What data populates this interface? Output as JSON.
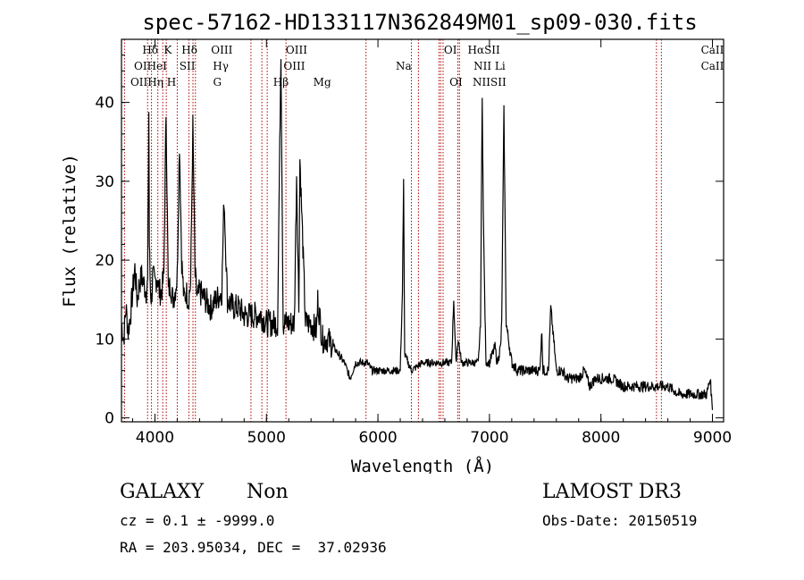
{
  "chart_data": {
    "type": "line",
    "title": "spec-57162-HD133117N362849M01_sp09-030.fits",
    "xlabel": "Wavelength (Å)",
    "ylabel": "Flux (relative)",
    "xlim": [
      3700,
      9100
    ],
    "ylim": [
      -0.5,
      48
    ],
    "x_ticks": [
      4000,
      5000,
      6000,
      7000,
      8000,
      9000
    ],
    "y_ticks": [
      0,
      10,
      20,
      30,
      40
    ],
    "grid": false,
    "line_color": "#000000",
    "marker_color": "#b00000",
    "series": [
      {
        "x": [
          3700,
          3720,
          3740,
          3760,
          3780,
          3800,
          3820,
          3840,
          3860,
          3880,
          3900,
          3920,
          3935,
          3945,
          3950,
          3960,
          3970,
          3980,
          4000,
          4020,
          4040,
          4060,
          4080,
          4100,
          4120,
          4140,
          4160,
          4180,
          4200,
          4220,
          4240,
          4260,
          4280,
          4300,
          4320,
          4340,
          4360,
          4380,
          4400,
          4450,
          4500,
          4550,
          4600,
          4620,
          4650,
          4700,
          4750,
          4800,
          4850,
          4900,
          4950,
          5000,
          5050,
          5100,
          5130,
          5150,
          5200,
          5250,
          5270,
          5290,
          5300,
          5350,
          5400,
          5450,
          5460,
          5500,
          5550,
          5600,
          5650,
          5700,
          5750,
          5800,
          5850,
          5900,
          5950,
          6000,
          6100,
          6200,
          6220,
          6230,
          6240,
          6300,
          6400,
          6500,
          6600,
          6640,
          6660,
          6680,
          6700,
          6720,
          6750,
          6800,
          6850,
          6900,
          6920,
          6935,
          6945,
          6960,
          6970,
          6990,
          7000,
          7050,
          7070,
          7100,
          7110,
          7130,
          7150,
          7200,
          7250,
          7300,
          7350,
          7400,
          7450,
          7470,
          7480,
          7500,
          7530,
          7550,
          7600,
          7650,
          7700,
          7750,
          7800,
          7850,
          7900,
          7950,
          8000,
          8100,
          8200,
          8300,
          8400,
          8500,
          8600,
          8700,
          8800,
          8900,
          8950,
          8980,
          9000
        ],
        "y": [
          12,
          10,
          14,
          11,
          13,
          16,
          19,
          15,
          17,
          18,
          17,
          16,
          17,
          39,
          22,
          16,
          15,
          18,
          17,
          18,
          16,
          16,
          18,
          39,
          16,
          17,
          15,
          16,
          18,
          35,
          20,
          15,
          16,
          15,
          17,
          37,
          18,
          15,
          16,
          15,
          14,
          15,
          16,
          28,
          15,
          14,
          14,
          13,
          13,
          13,
          13,
          12,
          12,
          12,
          47,
          12,
          12,
          12,
          31,
          14,
          33,
          12,
          12,
          11,
          15,
          10,
          10,
          9,
          8,
          7,
          5,
          7,
          7,
          7,
          6,
          6,
          6,
          6,
          16,
          30,
          8,
          6,
          7,
          7,
          7,
          7,
          7,
          15,
          7,
          10,
          7,
          7,
          7,
          7,
          12,
          41,
          26,
          13,
          7,
          7,
          7,
          9,
          7,
          9,
          12,
          39,
          12,
          7,
          6,
          6,
          6,
          6,
          6,
          11,
          6,
          6,
          6,
          14,
          6,
          6,
          5,
          5,
          5,
          6,
          4,
          5,
          5,
          5,
          4,
          4,
          4,
          4,
          4,
          3,
          3,
          3,
          3,
          5,
          1
        ]
      }
    ],
    "lines": [
      {
        "name": "OII",
        "x": 3727
      },
      {
        "name": "CaII",
        "x": 3934
      },
      {
        "name": "CaII",
        "x": 3969
      },
      {
        "name": "Hε",
        "x": 3970
      },
      {
        "name": "HeI",
        "x": 4026
      },
      {
        "name": "Hδ",
        "x": 4102
      },
      {
        "name": "K",
        "x": 4145
      },
      {
        "name": "H",
        "x": 4200
      },
      {
        "name": "SII",
        "x": 4070
      },
      {
        "name": "Hγ",
        "x": 4341
      },
      {
        "name": "Hδ",
        "x": 4330
      },
      {
        "name": "OIII",
        "x": 4363
      },
      {
        "name": "G",
        "x": 4304
      },
      {
        "name": "Hβ",
        "x": 4861
      },
      {
        "name": "OIII",
        "x": 4959
      },
      {
        "name": "OIII",
        "x": 5007
      },
      {
        "name": "Mg",
        "x": 5175
      },
      {
        "name": "Na",
        "x": 5893
      },
      {
        "name": "OI",
        "x": 6300
      },
      {
        "name": "OI",
        "x": 6363
      },
      {
        "name": "Hα",
        "x": 6563
      },
      {
        "name": "NII",
        "x": 6548
      },
      {
        "name": "NII",
        "x": 6584
      },
      {
        "name": "SII",
        "x": 6717
      },
      {
        "name": "SII",
        "x": 6731
      },
      {
        "name": "Li",
        "x": 6708
      },
      {
        "name": "CaII",
        "x": 8498
      },
      {
        "name": "CaII",
        "x": 8542
      }
    ],
    "line_labels": [
      {
        "text": "Hδ",
        "x": 3958,
        "row": 0
      },
      {
        "text": "K",
        "x": 4115,
        "row": 0
      },
      {
        "text": "Hδ",
        "x": 4310,
        "row": 0
      },
      {
        "text": "OIII",
        "x": 4600,
        "row": 0
      },
      {
        "text": "OIII",
        "x": 5270,
        "row": 0
      },
      {
        "text": "OI",
        "x": 6650,
        "row": 0
      },
      {
        "text": "HαSII",
        "x": 6950,
        "row": 0
      },
      {
        "text": "CaII",
        "x": 9000,
        "row": 0
      },
      {
        "text": "OIHeI",
        "x": 3960,
        "row": 1
      },
      {
        "text": "SII",
        "x": 4290,
        "row": 1
      },
      {
        "text": "Hγ",
        "x": 4590,
        "row": 1
      },
      {
        "text": "OIII",
        "x": 5250,
        "row": 1
      },
      {
        "text": "Na",
        "x": 6230,
        "row": 1
      },
      {
        "text": "NII Li",
        "x": 7000,
        "row": 1
      },
      {
        "text": "CaII",
        "x": 9000,
        "row": 1
      },
      {
        "text": "OIIHη H",
        "x": 3985,
        "row": 2
      },
      {
        "text": "G",
        "x": 4560,
        "row": 2
      },
      {
        "text": "Hβ",
        "x": 5130,
        "row": 2
      },
      {
        "text": "Mg",
        "x": 5500,
        "row": 2
      },
      {
        "text": "OI",
        "x": 6700,
        "row": 2
      },
      {
        "text": "NIISII",
        "x": 7000,
        "row": 2
      }
    ],
    "marker_x": [
      3727,
      3934,
      3969,
      4026,
      4070,
      4102,
      4200,
      4304,
      4341,
      4363,
      4861,
      4959,
      5007,
      5175,
      5893,
      6300,
      6363,
      6548,
      6563,
      6584,
      6717,
      6731,
      8498,
      8542
    ]
  },
  "info": {
    "class": "GALAXY",
    "subclass": "Non",
    "survey": "LAMOST DR3",
    "cz": "cz = 0.1 ± -9999.0",
    "obs_date": "Obs-Date: 20150519",
    "coords": "RA = 203.95034, DEC =  37.02936"
  }
}
